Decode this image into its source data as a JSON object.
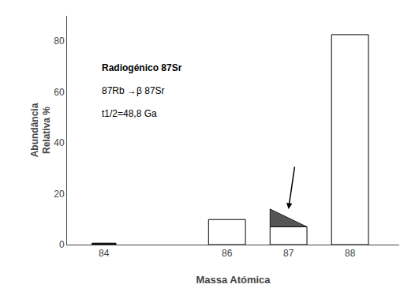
{
  "chart_data": {
    "type": "bar",
    "x": [
      84,
      86,
      87,
      88
    ],
    "series": [
      {
        "values": [
          0.56,
          9.86,
          7.0,
          82.58
        ],
        "colors": [
          "#111111",
          "#ffffff",
          "#ffffff",
          "#ffffff"
        ]
      },
      {
        "type": "area",
        "marker": "triangle",
        "color": "#555555",
        "values": [
          null,
          null,
          7.0,
          null
        ]
      }
    ],
    "stacked": true,
    "xlabel": "Massa Atómica",
    "ylabel": "Abundância\nRelativa %",
    "xlim": [
      83.4,
      88.8
    ],
    "xticks": [
      84,
      86,
      87,
      88
    ],
    "ylim": [
      0,
      90
    ],
    "yticks": [
      0,
      20,
      40,
      60,
      80
    ],
    "annotations": [
      "Radiogénico 87Sr",
      "87Rb →β 87Sr",
      "t1/2=48,8 Ga"
    ],
    "grid": false
  }
}
